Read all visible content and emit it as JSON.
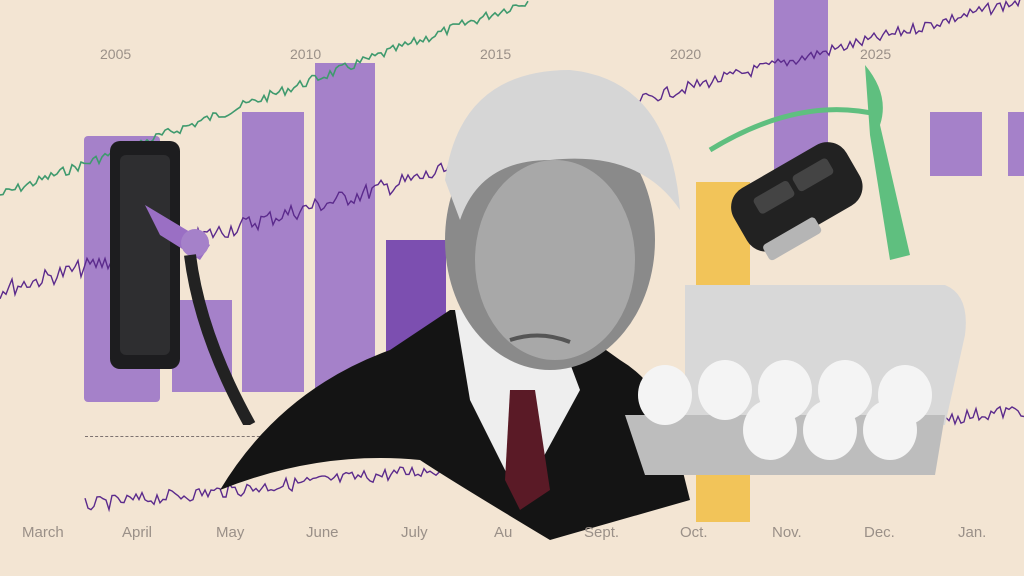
{
  "years": [
    "2005",
    "2010",
    "2015",
    "2020",
    "2025"
  ],
  "months": [
    "March",
    "April",
    "May",
    "June",
    "July",
    "Au",
    "Sept.",
    "Oct.",
    "Nov.",
    "Dec.",
    "Jan."
  ],
  "colors": {
    "background": "#f3e5d3",
    "bar_light": "#a581c9",
    "bar_dark": "#7c4fb0",
    "bar_yellow": "#f2c14e",
    "line_green": "#3f9a6e",
    "line_purple": "#5b2a8c",
    "ribbon": "#5fbf7f"
  },
  "icons": [
    "gas-pump-icon",
    "car-key-icon",
    "egg-carton-icon",
    "portrait-photo"
  ]
}
